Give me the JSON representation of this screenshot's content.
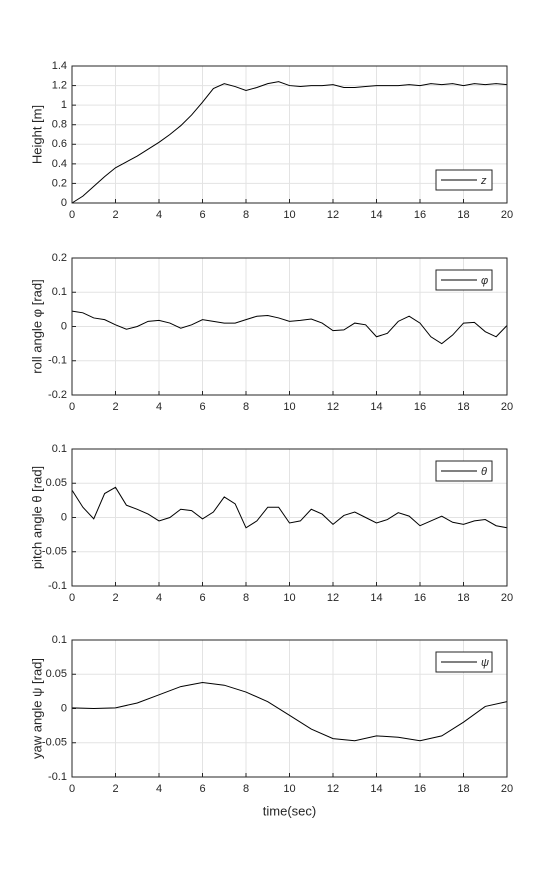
{
  "chart_data": [
    {
      "type": "line",
      "ylabel": "Height [m]",
      "legend": "lower right",
      "grid": true,
      "x": [
        0,
        0.5,
        1,
        1.5,
        2,
        2.5,
        3,
        3.5,
        4,
        4.5,
        5,
        5.5,
        6,
        6.5,
        7,
        7.5,
        8,
        8.5,
        9,
        9.5,
        10,
        10.5,
        11,
        11.5,
        12,
        12.5,
        13,
        13.5,
        14,
        14.5,
        15,
        15.5,
        16,
        16.5,
        17,
        17.5,
        18,
        18.5,
        19,
        19.5,
        20
      ],
      "series": [
        {
          "name": "z",
          "color": "#000000",
          "values": [
            0,
            0.07,
            0.17,
            0.27,
            0.36,
            0.42,
            0.48,
            0.55,
            0.62,
            0.7,
            0.79,
            0.9,
            1.03,
            1.17,
            1.22,
            1.19,
            1.15,
            1.18,
            1.22,
            1.24,
            1.2,
            1.19,
            1.2,
            1.2,
            1.21,
            1.18,
            1.18,
            1.19,
            1.2,
            1.2,
            1.2,
            1.21,
            1.2,
            1.22,
            1.21,
            1.22,
            1.2,
            1.22,
            1.21,
            1.22,
            1.21
          ]
        }
      ],
      "xlim": [
        0,
        20
      ],
      "ylim": [
        0,
        1.4
      ],
      "xticks": [
        0,
        2,
        4,
        6,
        8,
        10,
        12,
        14,
        16,
        18,
        20
      ],
      "yticks": [
        0,
        0.2,
        0.4,
        0.6,
        0.8,
        1,
        1.2,
        1.4
      ]
    },
    {
      "type": "line",
      "ylabel": "roll angle φ [rad]",
      "legend": "upper right",
      "grid": true,
      "x": [
        0,
        0.5,
        1,
        1.5,
        2,
        2.5,
        3,
        3.5,
        4,
        4.5,
        5,
        5.5,
        6,
        6.5,
        7,
        7.5,
        8,
        8.5,
        9,
        9.5,
        10,
        10.5,
        11,
        11.5,
        12,
        12.5,
        13,
        13.5,
        14,
        14.5,
        15,
        15.5,
        16,
        16.5,
        17,
        17.5,
        18,
        18.5,
        19,
        19.5,
        20
      ],
      "series": [
        {
          "name": "φ",
          "color": "#000000",
          "values": [
            0.045,
            0.04,
            0.025,
            0.02,
            0.005,
            -0.008,
            0,
            0.015,
            0.018,
            0.01,
            -0.005,
            0.005,
            0.02,
            0.015,
            0.01,
            0.01,
            0.02,
            0.03,
            0.032,
            0.025,
            0.015,
            0.018,
            0.022,
            0.01,
            -0.012,
            -0.01,
            0.01,
            0.005,
            -0.03,
            -0.02,
            0.015,
            0.03,
            0.01,
            -0.03,
            -0.05,
            -0.025,
            0.01,
            0.012,
            -0.015,
            -0.03,
            0.003
          ]
        }
      ],
      "xlim": [
        0,
        20
      ],
      "ylim": [
        -0.2,
        0.2
      ],
      "xticks": [
        0,
        2,
        4,
        6,
        8,
        10,
        12,
        14,
        16,
        18,
        20
      ],
      "yticks": [
        -0.2,
        -0.1,
        0,
        0.1,
        0.2
      ]
    },
    {
      "type": "line",
      "ylabel": "pitch angle θ [rad]",
      "legend": "upper right",
      "grid": true,
      "x": [
        0,
        0.5,
        1,
        1.5,
        2,
        2.5,
        3,
        3.5,
        4,
        4.5,
        5,
        5.5,
        6,
        6.5,
        7,
        7.5,
        8,
        8.5,
        9,
        9.5,
        10,
        10.5,
        11,
        11.5,
        12,
        12.5,
        13,
        13.5,
        14,
        14.5,
        15,
        15.5,
        16,
        16.5,
        17,
        17.5,
        18,
        18.5,
        19,
        19.5,
        20
      ],
      "series": [
        {
          "name": "θ",
          "color": "#000000",
          "values": [
            0.04,
            0.015,
            -0.002,
            0.035,
            0.044,
            0.018,
            0.012,
            0.005,
            -0.005,
            0,
            0.012,
            0.01,
            -0.002,
            0.008,
            0.03,
            0.02,
            -0.015,
            -0.005,
            0.015,
            0.015,
            -0.008,
            -0.005,
            0.012,
            0.005,
            -0.01,
            0.003,
            0.008,
            0,
            -0.008,
            -0.003,
            0.007,
            0.002,
            -0.012,
            -0.005,
            0.002,
            -0.007,
            -0.01,
            -0.005,
            -0.003,
            -0.012,
            -0.015
          ]
        }
      ],
      "xlim": [
        0,
        20
      ],
      "ylim": [
        -0.1,
        0.1
      ],
      "xticks": [
        0,
        2,
        4,
        6,
        8,
        10,
        12,
        14,
        16,
        18,
        20
      ],
      "yticks": [
        -0.1,
        -0.05,
        0,
        0.05,
        0.1
      ]
    },
    {
      "type": "line",
      "ylabel": "yaw angle ψ [rad]",
      "xlabel": "time(sec)",
      "legend": "upper right",
      "grid": true,
      "x": [
        0,
        1,
        2,
        3,
        4,
        5,
        6,
        7,
        8,
        9,
        10,
        11,
        12,
        13,
        14,
        15,
        16,
        17,
        18,
        19,
        20
      ],
      "series": [
        {
          "name": "ψ",
          "color": "#000000",
          "values": [
            0.001,
            0,
            0.001,
            0.008,
            0.02,
            0.032,
            0.038,
            0.034,
            0.024,
            0.01,
            -0.01,
            -0.03,
            -0.044,
            -0.047,
            -0.04,
            -0.042,
            -0.047,
            -0.04,
            -0.02,
            0.003,
            0.01
          ]
        }
      ],
      "xlim": [
        0,
        20
      ],
      "ylim": [
        -0.1,
        0.1
      ],
      "xticks": [
        0,
        2,
        4,
        6,
        8,
        10,
        12,
        14,
        16,
        18,
        20
      ],
      "yticks": [
        -0.1,
        -0.05,
        0,
        0.05,
        0.1
      ]
    }
  ]
}
